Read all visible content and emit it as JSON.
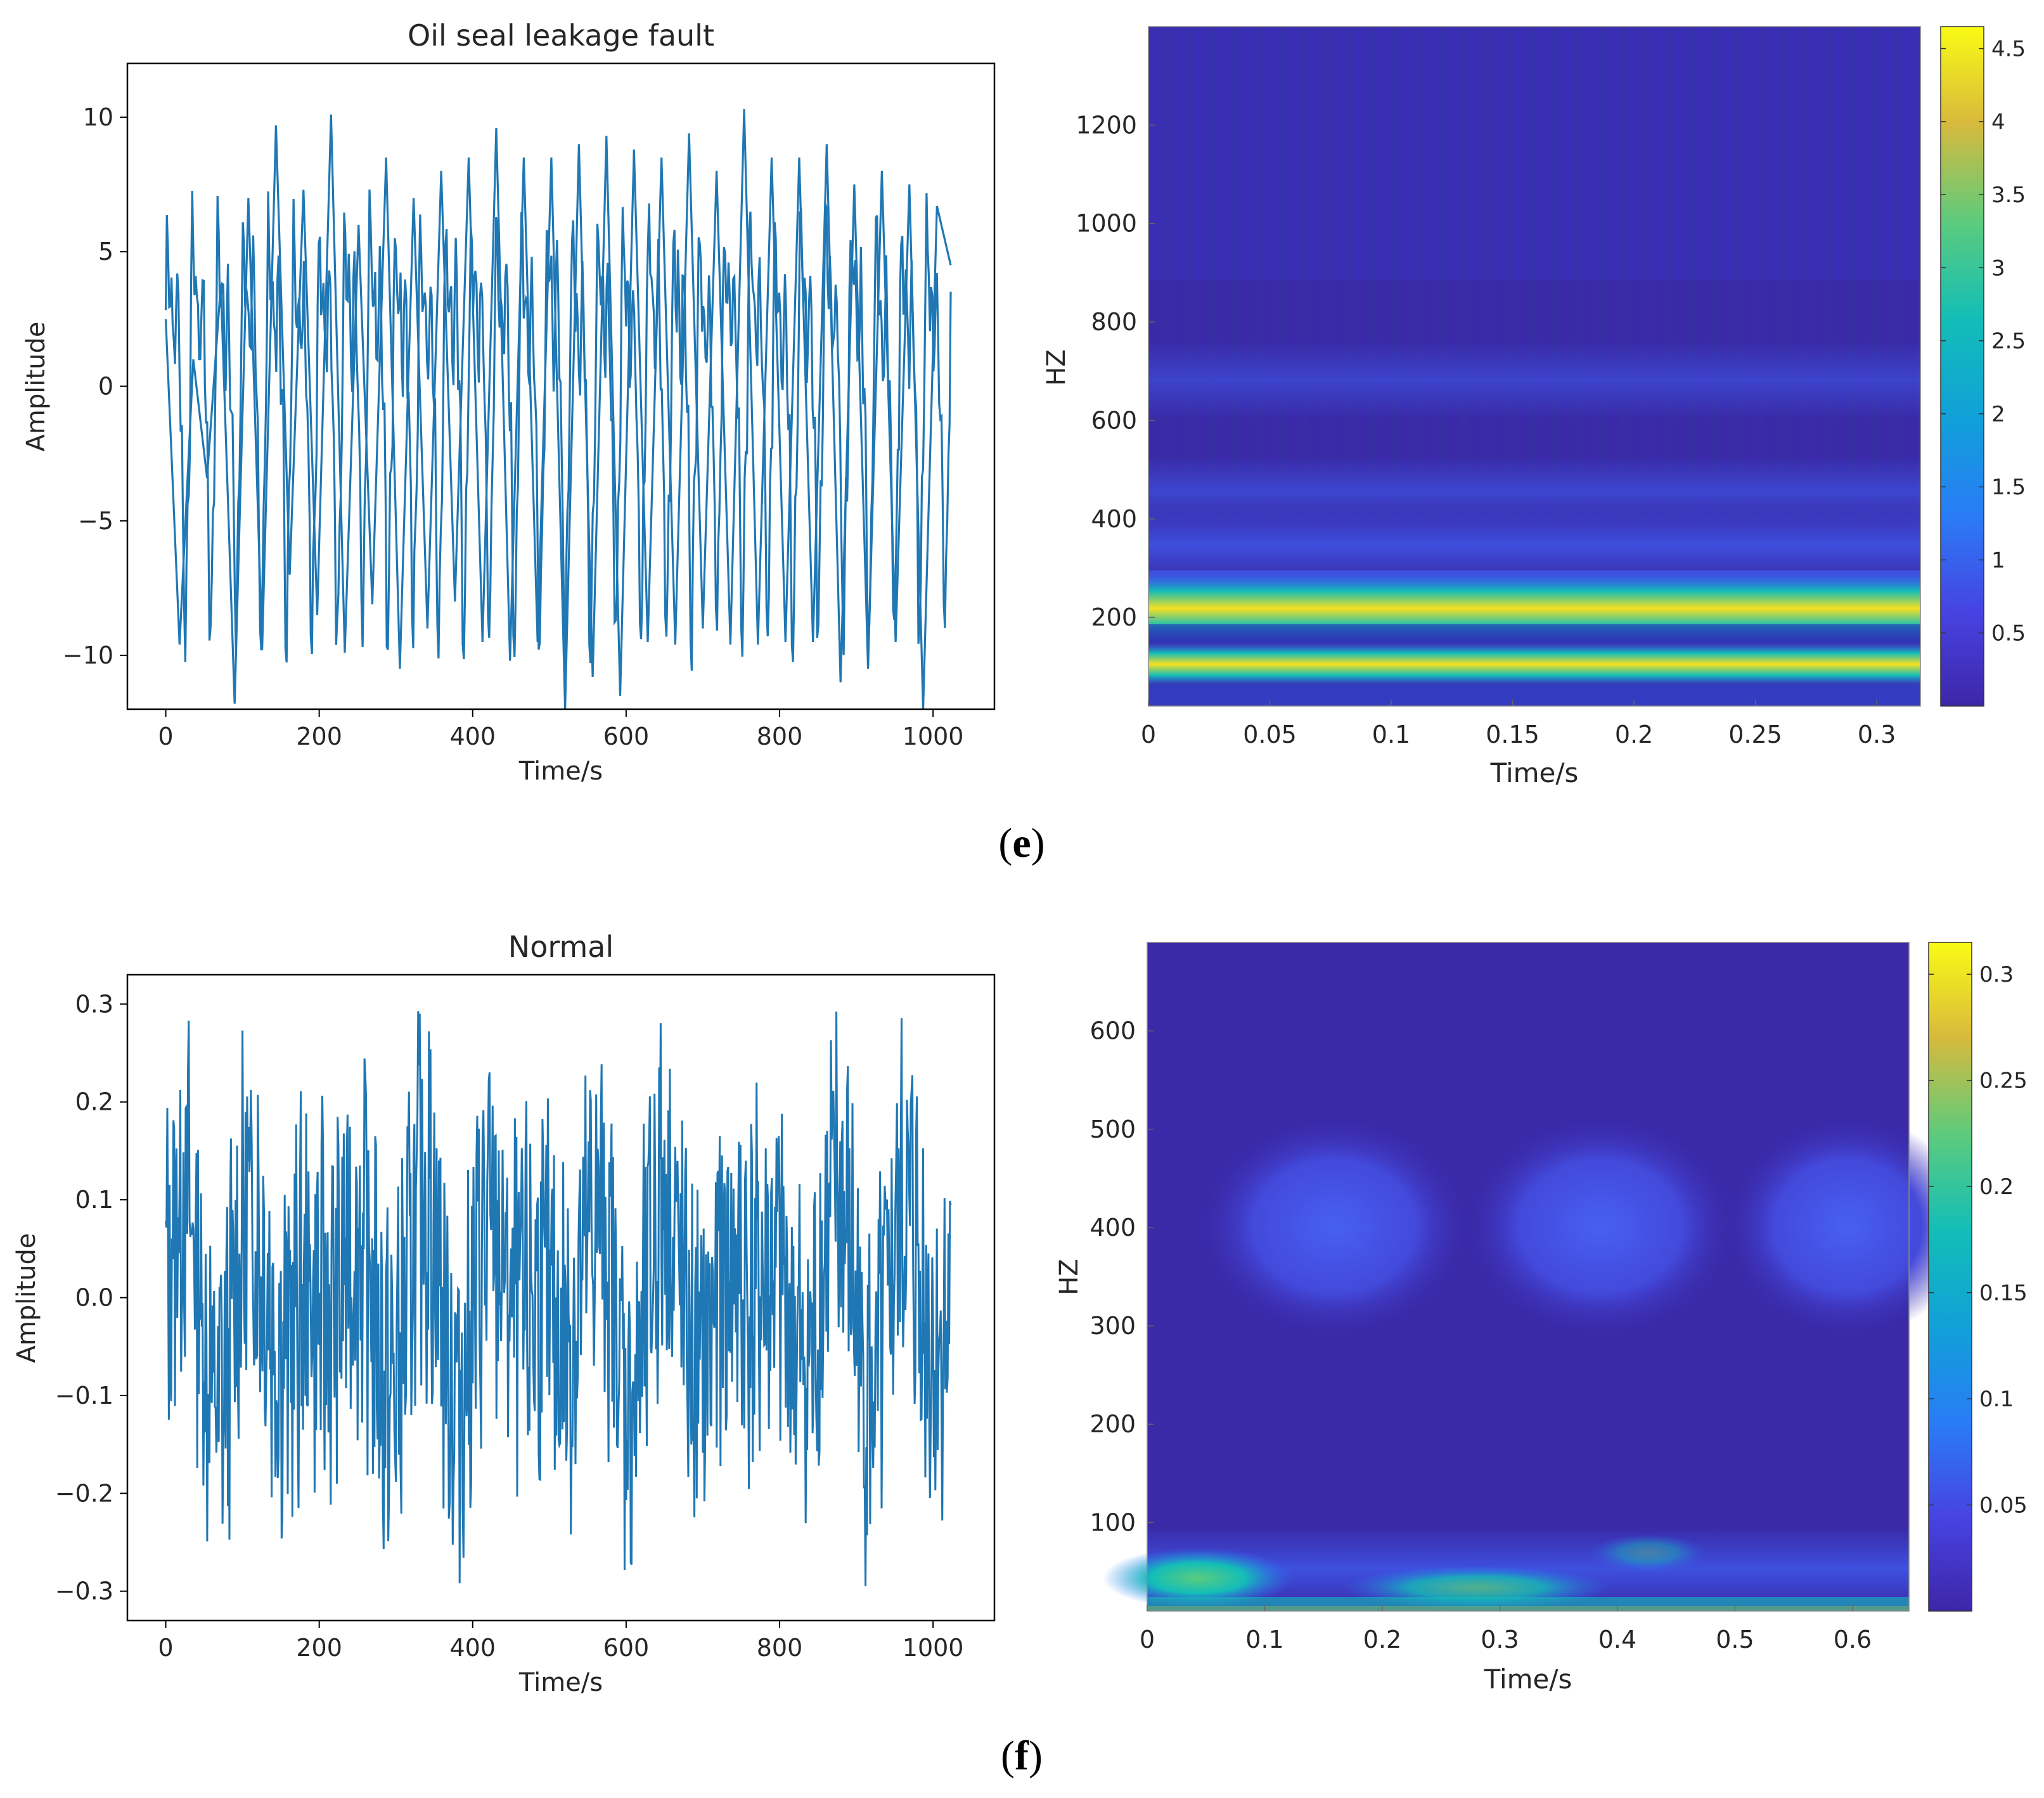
{
  "panels": {
    "e": {
      "label": "(e)",
      "label_open": "(",
      "label_letter": "e",
      "label_close": ")"
    },
    "f": {
      "label": "(f)",
      "label_open": "(",
      "label_letter": "f",
      "label_close": ")"
    }
  },
  "colors": {
    "signal": "#1f77b4",
    "frame": "#000000",
    "text": "#262626"
  },
  "chart_data": [
    {
      "id": "e-time",
      "type": "line",
      "title": "Oil seal leakage fault",
      "xlabel": "Time/s",
      "ylabel": "Amplitude",
      "xlim": [
        -50,
        1080
      ],
      "ylim": [
        -12,
        12
      ],
      "xticks": [
        0,
        200,
        400,
        600,
        800,
        1000
      ],
      "xtick_labels": [
        "0",
        "200",
        "400",
        "600",
        "800",
        "1000"
      ],
      "yticks": [
        -10,
        -5,
        0,
        5,
        10
      ],
      "ytick_labels": [
        "−10",
        "−5",
        "0",
        "5",
        "10"
      ],
      "series": [
        {
          "name": "signal",
          "n_samples": 1024,
          "period": 33,
          "amplitude_peak": 10,
          "values": [
            2.5,
            -9.6,
            1.0,
            -3.4,
            3.8,
            -11.8,
            7.0,
            -9.8,
            9.7,
            -7.0,
            7.3,
            -8.5,
            10.1,
            -9.9,
            6.0,
            -8.1,
            8.5,
            -10.5,
            7.0,
            -9.0,
            8.0,
            -8.0,
            8.5,
            -9.5,
            9.6,
            -10.2,
            8.5,
            -9.5,
            8.5,
            -12.0,
            9.0,
            -10.8,
            9.3,
            -11.5,
            8.8,
            -9.5,
            8.5,
            -9.6,
            9.4,
            -9.0,
            8.0,
            -9.6,
            10.3,
            -9.6,
            8.5,
            -9.5,
            8.5,
            -9.5,
            9.0,
            -11.0,
            7.5,
            -10.5,
            8.0,
            -9.5,
            7.5,
            -12.0,
            6.7,
            4.5
          ]
        }
      ]
    },
    {
      "id": "e-scalogram",
      "type": "heatmap",
      "xlabel": "Time/s",
      "ylabel": "HZ",
      "xlim": [
        0,
        0.318
      ],
      "ylim": [
        20,
        1400
      ],
      "xticks": [
        0,
        0.05,
        0.1,
        0.15,
        0.2,
        0.25,
        0.3
      ],
      "xtick_labels": [
        "0",
        "0.05",
        "0.1",
        "0.15",
        "0.2",
        "0.25",
        "0.3"
      ],
      "yticks": [
        200,
        400,
        600,
        800,
        1000,
        1200
      ],
      "ytick_labels": [
        "200",
        "400",
        "600",
        "800",
        "1000",
        "1200"
      ],
      "colorbar": {
        "min": 0,
        "max": 4.65,
        "ticks": [
          0.5,
          1,
          1.5,
          2,
          2.5,
          3,
          3.5,
          4,
          4.5
        ],
        "tick_labels": [
          "0.5",
          "1",
          "1.5",
          "2",
          "2.5",
          "3",
          "3.5",
          "4",
          "4.5"
        ]
      },
      "bands": [
        {
          "freq_hz": 210,
          "peak_value": 4.5
        },
        {
          "freq_hz": 100,
          "peak_value": 4.6
        },
        {
          "freq_hz": 150,
          "peak_value": 0.4
        },
        {
          "freq_hz": 330,
          "peak_value": 0.9
        },
        {
          "freq_hz": 500,
          "peak_value": 0.6
        }
      ]
    },
    {
      "id": "f-time",
      "type": "line",
      "title": "Normal",
      "xlabel": "Time/s",
      "ylabel": "Amplitude",
      "xlim": [
        -50,
        1080
      ],
      "ylim": [
        -0.33,
        0.33
      ],
      "xticks": [
        0,
        200,
        400,
        600,
        800,
        1000
      ],
      "xtick_labels": [
        "0",
        "200",
        "400",
        "600",
        "800",
        "1000"
      ],
      "yticks": [
        -0.3,
        -0.2,
        -0.1,
        0.0,
        0.1,
        0.2,
        0.3
      ],
      "ytick_labels": [
        "−0.3",
        "−0.2",
        "−0.1",
        "0.0",
        "0.1",
        "0.2",
        "0.3"
      ],
      "series": [
        {
          "name": "signal",
          "n_samples": 1024,
          "amplitude_peak": 0.3,
          "min_value": -0.3,
          "max_value": 0.3
        }
      ]
    },
    {
      "id": "f-scalogram",
      "type": "heatmap",
      "xlabel": "Time/s",
      "ylabel": "HZ",
      "xlim": [
        0,
        0.648
      ],
      "ylim": [
        10,
        690
      ],
      "xticks": [
        0,
        0.1,
        0.2,
        0.3,
        0.4,
        0.5,
        0.6
      ],
      "xtick_labels": [
        "0",
        "0.1",
        "0.2",
        "0.3",
        "0.4",
        "0.5",
        "0.6"
      ],
      "yticks": [
        100,
        200,
        300,
        400,
        500,
        600
      ],
      "ytick_labels": [
        "100",
        "200",
        "300",
        "400",
        "500",
        "600"
      ],
      "colorbar": {
        "min": 0,
        "max": 0.315,
        "ticks": [
          0.05,
          0.1,
          0.15,
          0.2,
          0.25,
          0.3
        ],
        "tick_labels": [
          "0.05",
          "0.1",
          "0.15",
          "0.2",
          "0.25",
          "0.3"
        ]
      },
      "blobs": [
        {
          "time_s": 0.14,
          "freq_hz": 400,
          "value": 0.05
        },
        {
          "time_s": 0.36,
          "freq_hz": 400,
          "value": 0.05
        },
        {
          "time_s": 0.57,
          "freq_hz": 400,
          "value": 0.05
        },
        {
          "time_s": 0.05,
          "freq_hz": 45,
          "value": 0.2
        },
        {
          "time_s": 0.3,
          "freq_hz": 40,
          "value": 0.12
        }
      ]
    }
  ]
}
